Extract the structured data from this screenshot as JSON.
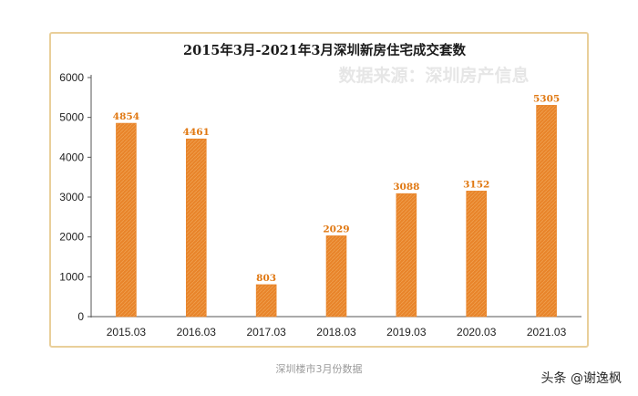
{
  "chart_data": {
    "type": "bar",
    "title": "2015年3月-2021年3月深圳新房住宅成交套数",
    "watermark": "数据来源：深圳房产信息",
    "categories": [
      "2015.03",
      "2016.03",
      "2017.03",
      "2018.03",
      "2019.03",
      "2020.03",
      "2021.03"
    ],
    "values": [
      4854,
      4461,
      803,
      2029,
      3088,
      3152,
      5305
    ],
    "yticks": [
      0,
      1000,
      2000,
      3000,
      4000,
      5000,
      6000
    ],
    "ylim": [
      0,
      6000
    ],
    "xlabel": "",
    "ylabel": "",
    "grid": false,
    "bar_color": "#e8842a",
    "label_color": "#e07812"
  },
  "caption": "深圳楼市3月份数据",
  "credit": "头条 @谢逸枫"
}
